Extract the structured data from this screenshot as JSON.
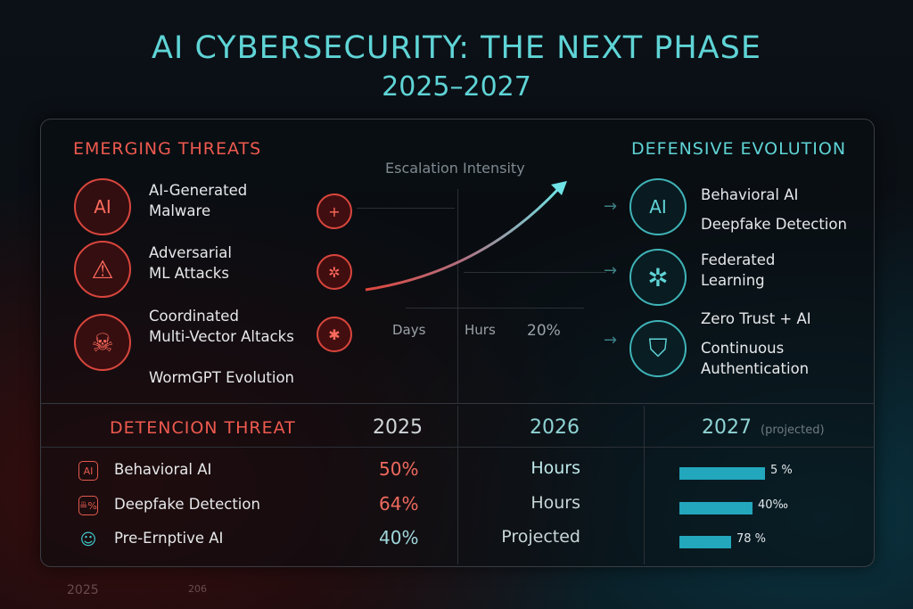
{
  "title": "AI CYBERSECURITY: THE NEXT PHASE",
  "subtitle": "2025–2027",
  "threats": {
    "header": "EMERGING THREATS",
    "items": [
      {
        "label": "AI-Generated\nMalware",
        "line1": "AI-Generated",
        "line2": "Malware",
        "icon": "ai-chip-icon",
        "icon_text": "AI"
      },
      {
        "line1": "Adversarial",
        "line2": "ML Attacks",
        "icon": "warning-icon",
        "icon_text": "⚠"
      },
      {
        "line1": "Coordinated",
        "line2": "Multi-Vector Altacks",
        "icon": "skull-icon",
        "icon_text": "☠"
      }
    ],
    "extra": "WormGPT Evolution"
  },
  "escalation": {
    "label": "Escalation Intensity",
    "ticks": [
      "Days",
      "Hurs",
      "20%"
    ]
  },
  "defense": {
    "header": "DEFENSIVE EVOLUTION",
    "items": [
      {
        "line1": "Behavioral AI",
        "line2": "Deepfake Detection",
        "icon": "ai-head-icon",
        "icon_text": "AI"
      },
      {
        "line1": "Federated",
        "line2": "Learning",
        "icon": "network-icon",
        "icon_text": "✲"
      },
      {
        "line1": "Zero Trust + AI",
        "line2": "Continuous",
        "line3": "Authentication",
        "icon": "shield-icon",
        "icon_text": "⛉"
      }
    ]
  },
  "table": {
    "header": "DETENCION THREAT",
    "col2025": "2025",
    "col2026": "2026",
    "col2027": "2027",
    "col2027_note": "(projected)",
    "rows": [
      {
        "label": "Behavioral AI",
        "icon": "ai-icon",
        "icon_text": "AI",
        "v2025": "50%",
        "v2026": "Hours",
        "v2027": "5 %",
        "bar_level": 1.0
      },
      {
        "label": "Deepfake Detection",
        "icon": "deepfake-icon",
        "icon_text": "≞%",
        "v2025": "64%",
        "v2026": "Hours",
        "v2027": "40‰",
        "bar_level": 0.85
      },
      {
        "label": "Pre-Ernptive AI",
        "icon": "face-icon",
        "icon_text": "☺",
        "v2025": "40%",
        "v2026": "Projected",
        "v2027": "78 %",
        "bar_level": 0.6
      }
    ]
  },
  "footer": [
    "2025",
    "206"
  ],
  "colors": {
    "threat": "#ee5a4f",
    "defense": "#5fd4d6",
    "bar": "#23a7bd"
  }
}
